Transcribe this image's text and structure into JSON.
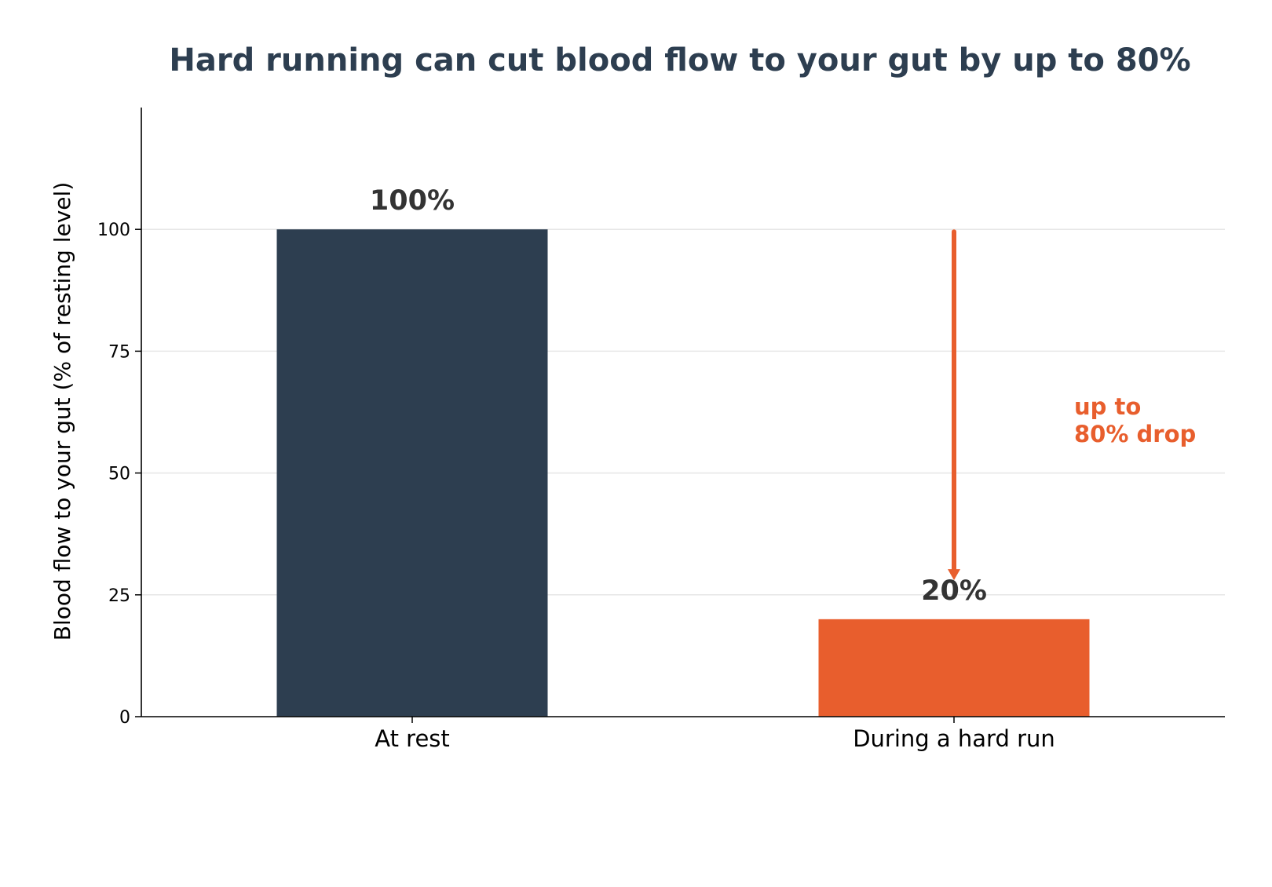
{
  "chart_data": {
    "type": "bar",
    "title": "Hard running can cut blood flow to your gut by up to 80%",
    "xlabel": "",
    "ylabel": "Blood flow to your gut (% of resting level)",
    "categories": [
      "At rest",
      "During a hard run"
    ],
    "values": [
      100,
      20
    ],
    "data_labels": [
      "100%",
      "20%"
    ],
    "bar_colors": [
      "#2d3e50",
      "#e85e2d"
    ],
    "ylim": [
      0,
      125
    ],
    "yticks": [
      0,
      25,
      50,
      75,
      100
    ],
    "grid": true,
    "annotation": {
      "lines": [
        "up to",
        "80% drop"
      ],
      "color": "#e85e2d",
      "arrow_from": 100,
      "arrow_to": 28
    }
  },
  "colors": {
    "title": "#2d3e50",
    "axis": "#000000",
    "grid": "#e6e6e6",
    "data_label": "#333333"
  }
}
